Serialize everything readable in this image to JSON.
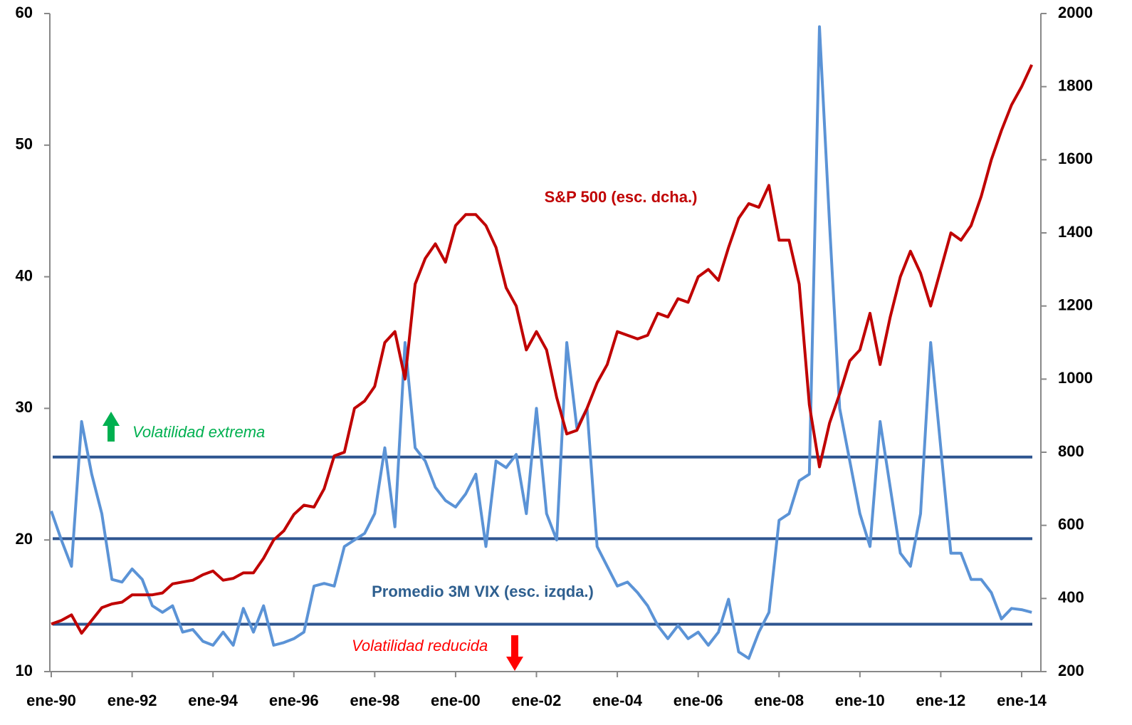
{
  "chart_data": {
    "type": "line",
    "categories": [
      "ene-90",
      null,
      null,
      null,
      null,
      null,
      null,
      null,
      "ene-92",
      null,
      null,
      null,
      null,
      null,
      null,
      null,
      "ene-94",
      null,
      null,
      null,
      null,
      null,
      null,
      null,
      "ene-96",
      null,
      null,
      null,
      null,
      null,
      null,
      null,
      "ene-98",
      null,
      null,
      null,
      null,
      null,
      null,
      null,
      "ene-00",
      null,
      null,
      null,
      null,
      null,
      null,
      null,
      "ene-02",
      null,
      null,
      null,
      null,
      null,
      null,
      null,
      "ene-04",
      null,
      null,
      null,
      null,
      null,
      null,
      null,
      "ene-06",
      null,
      null,
      null,
      null,
      null,
      null,
      null,
      "ene-08",
      null,
      null,
      null,
      null,
      null,
      null,
      null,
      "ene-10",
      null,
      null,
      null,
      null,
      null,
      null,
      null,
      "ene-12",
      null,
      null,
      null,
      null,
      null,
      null,
      null,
      "ene-14",
      null
    ],
    "series": [
      {
        "name": "Promedio 3M VIX (esc. izqda.)",
        "color": "#5b93d6",
        "axis": "y",
        "values": [
          22.2,
          20,
          18,
          29,
          25,
          22,
          17,
          16.8,
          17.8,
          17,
          15,
          14.5,
          15,
          13,
          13.2,
          12.3,
          12,
          13,
          12,
          14.8,
          13,
          15,
          12,
          12.2,
          12.5,
          13,
          16.5,
          16.7,
          16.5,
          19.5,
          20,
          20.5,
          22,
          27,
          21,
          35,
          27,
          26,
          24,
          23,
          22.5,
          23.5,
          25,
          19.5,
          26,
          25.5,
          26.5,
          22,
          30,
          22,
          20,
          35,
          28.5,
          30,
          19.5,
          18,
          16.5,
          16.8,
          16,
          15,
          13.5,
          12.5,
          13.5,
          12.5,
          13,
          12,
          13,
          15.5,
          11.5,
          11,
          13,
          14.5,
          21.5,
          22,
          24.5,
          25,
          59,
          44,
          30,
          26,
          22,
          19.5,
          29,
          24,
          19,
          18,
          22,
          35,
          27,
          19,
          19,
          17,
          17,
          16,
          14,
          14.8,
          14.7,
          14.5
        ]
      },
      {
        "name": "S&P 500 (esc. dcha.)",
        "color": "#c00000",
        "axis": "y2",
        "values": [
          330,
          340,
          355,
          305,
          340,
          375,
          385,
          390,
          410,
          410,
          410,
          415,
          440,
          445,
          450,
          465,
          475,
          450,
          455,
          470,
          470,
          510,
          560,
          585,
          630,
          655,
          650,
          700,
          790,
          800,
          920,
          940,
          980,
          1100,
          1130,
          1000,
          1260,
          1330,
          1370,
          1320,
          1420,
          1450,
          1450,
          1420,
          1360,
          1250,
          1200,
          1080,
          1130,
          1080,
          950,
          850,
          860,
          920,
          990,
          1040,
          1130,
          1120,
          1110,
          1120,
          1180,
          1170,
          1220,
          1210,
          1280,
          1300,
          1270,
          1360,
          1440,
          1480,
          1470,
          1530,
          1380,
          1380,
          1260,
          930,
          760,
          880,
          960,
          1050,
          1080,
          1180,
          1040,
          1170,
          1280,
          1350,
          1290,
          1200,
          1300,
          1400,
          1380,
          1420,
          1500,
          1600,
          1680,
          1750,
          1800,
          1860
        ]
      }
    ],
    "ylim": [
      10,
      60
    ],
    "yticks": [
      10,
      20,
      30,
      40,
      50,
      60
    ],
    "y2lim": [
      200,
      2000
    ],
    "y2ticks": [
      200,
      400,
      600,
      800,
      1000,
      1200,
      1400,
      1600,
      1800,
      2000
    ],
    "hlines": [
      26.3,
      20.1,
      13.6
    ],
    "hline_color": "#2e5590",
    "annotations": [
      "Volatilidad extrema",
      "Volatilidad reducida"
    ]
  }
}
